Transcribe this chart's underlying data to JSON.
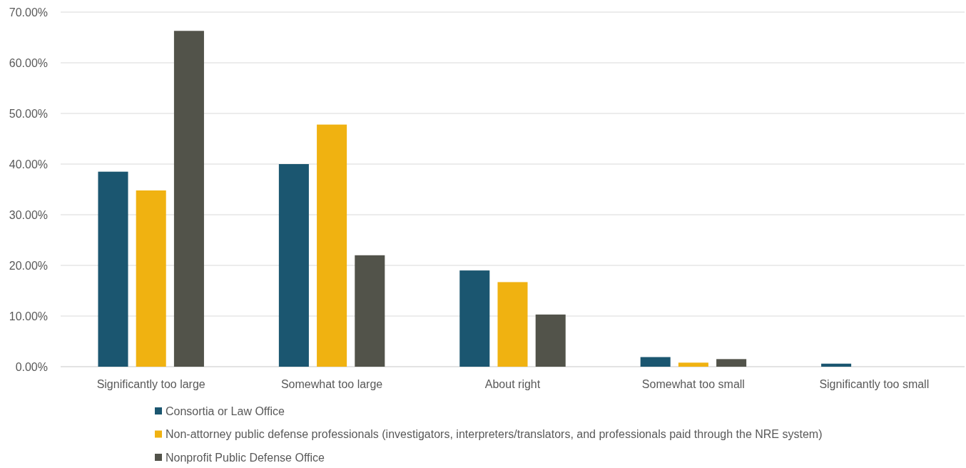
{
  "chart_data": {
    "type": "bar",
    "categories": [
      "Significantly too large",
      "Somewhat too large",
      "About right",
      "Somewhat too small",
      "Significantly too small"
    ],
    "series": [
      {
        "name": "Consortia or Law Office",
        "color": "#1b5670",
        "values": [
          38.5,
          40.0,
          19.0,
          1.9,
          0.6
        ]
      },
      {
        "name": "Non-attorney public defense professionals (investigators, interpreters/translators, and professionals paid through the NRE system)",
        "color": "#f0b211",
        "values": [
          34.8,
          47.8,
          16.7,
          0.8,
          0
        ]
      },
      {
        "name": "Nonprofit Public Defense Office",
        "color": "#52534a",
        "values": [
          66.3,
          22.0,
          10.3,
          1.5,
          0
        ]
      }
    ],
    "ylim": [
      0,
      70
    ],
    "yticks": [
      {
        "value": 0,
        "label": "0.00%"
      },
      {
        "value": 10,
        "label": "10.00%"
      },
      {
        "value": 20,
        "label": "20.00%"
      },
      {
        "value": 30,
        "label": "30.00%"
      },
      {
        "value": 40,
        "label": "40.00%"
      },
      {
        "value": 50,
        "label": "50.00%"
      },
      {
        "value": 60,
        "label": "60.00%"
      },
      {
        "value": 70,
        "label": "70.00%"
      }
    ],
    "grid": "y",
    "legend": "bottom"
  }
}
